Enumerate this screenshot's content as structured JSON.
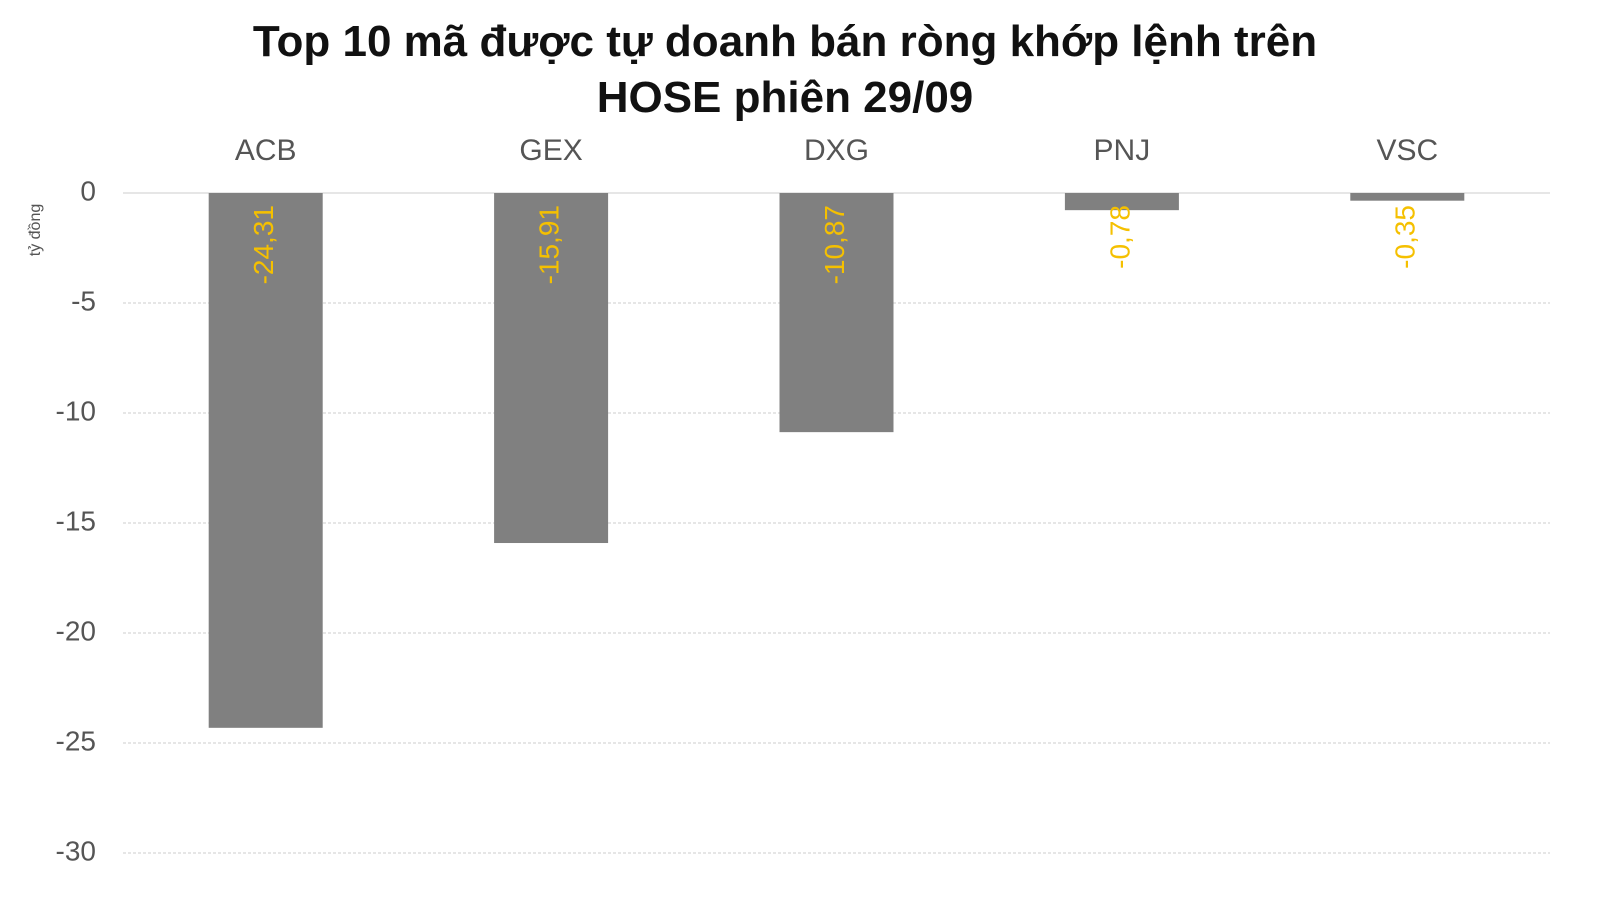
{
  "chart_data": {
    "type": "bar",
    "title": "Top 10 mã được tự doanh bán ròng khớp lệnh trên HOSE phiên 29/09",
    "y_label": "tỷ đồng",
    "categories": [
      "ACB",
      "GEX",
      "DXG",
      "PNJ",
      "VSC"
    ],
    "values": [
      -24.31,
      -15.91,
      -10.87,
      -0.78,
      -0.35
    ],
    "value_labels": [
      "-24,31",
      "-15,91",
      "-10,87",
      "-0,78",
      "-0,35"
    ],
    "color": "#808080",
    "label_color": "#f5c000",
    "ylim": [
      -30,
      0
    ],
    "yticks": [
      0,
      -5,
      -10,
      -15,
      -20,
      -25,
      -30
    ],
    "grid": true
  }
}
